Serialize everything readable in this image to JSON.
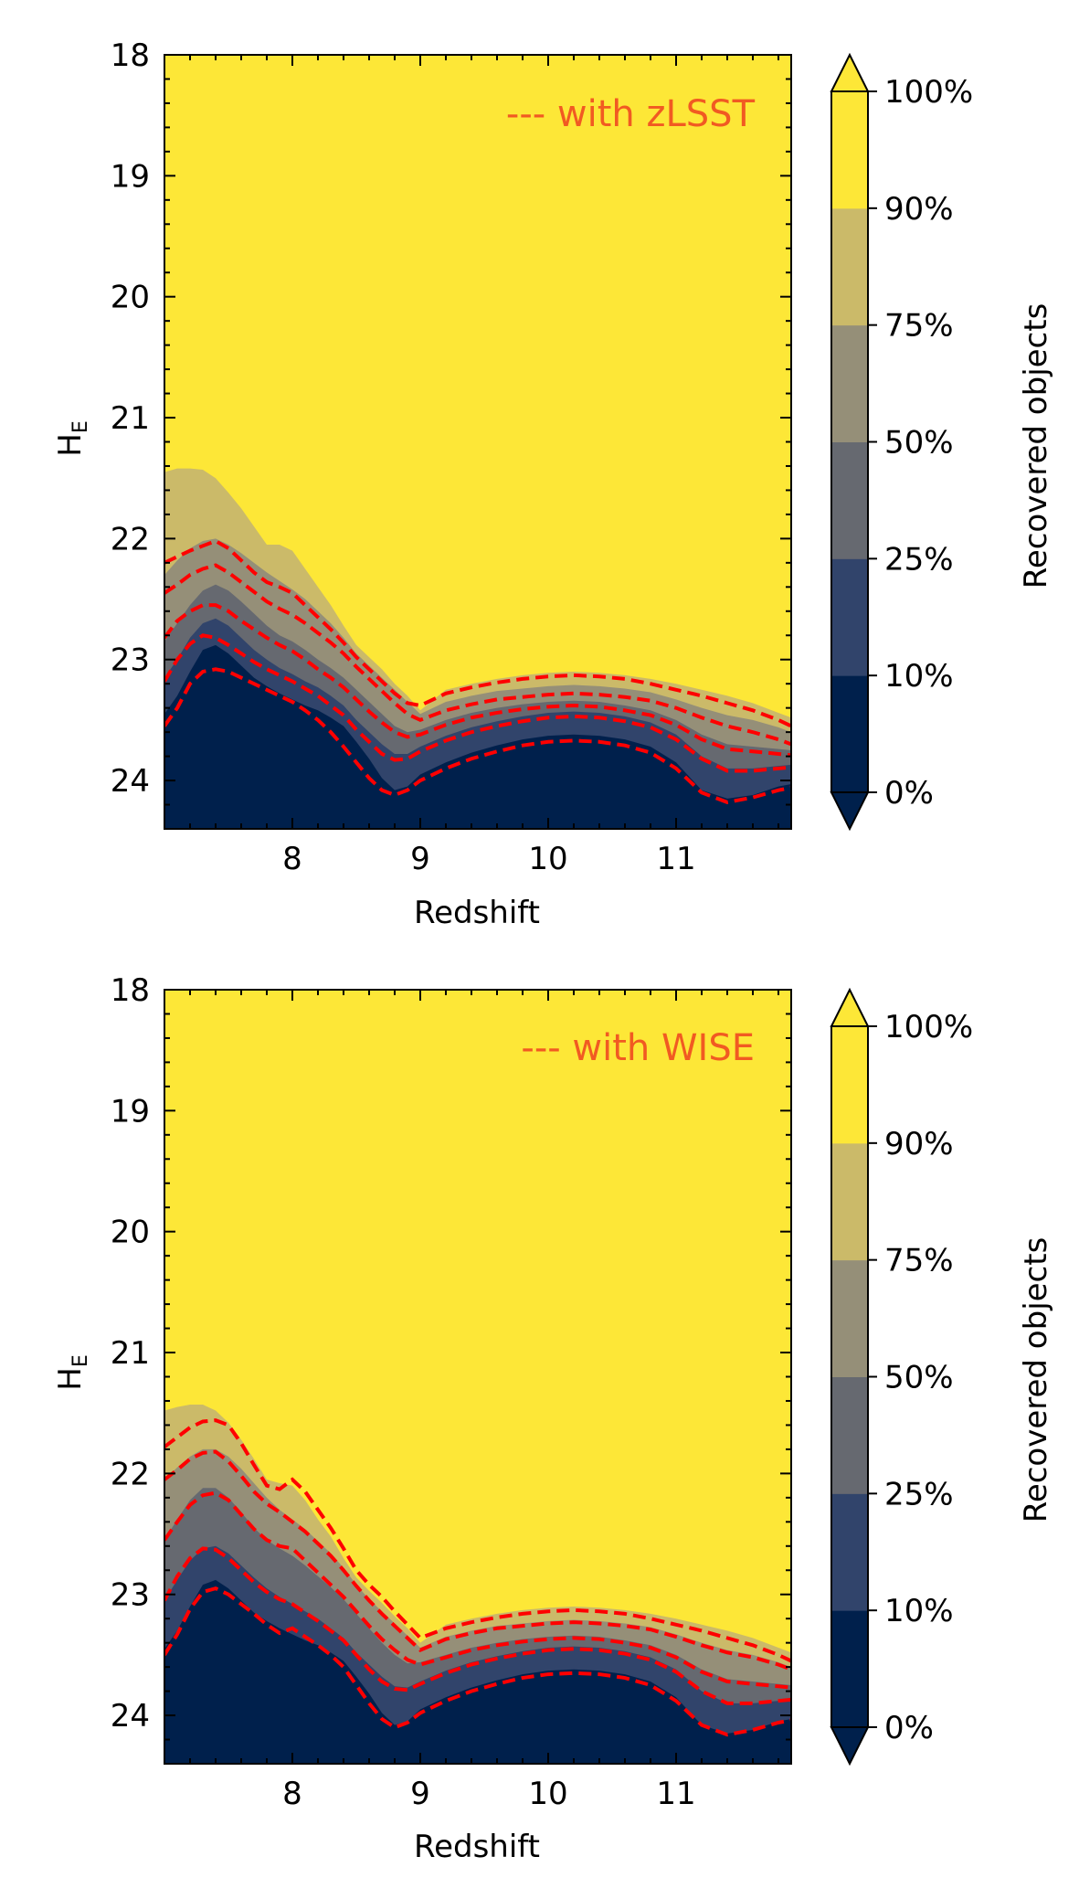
{
  "colors": {
    "levels": [
      "#00204c",
      "#31446b",
      "#666970",
      "#958f78",
      "#cbba69",
      "#fde737"
    ],
    "contour": "#ff0000",
    "legend_text": "#f15a22"
  },
  "chart_data": [
    {
      "type": "contour",
      "title": "",
      "legend": "--- with zLSST",
      "xlabel": "Redshift",
      "ylabel_main": "H",
      "ylabel_sub": "E",
      "xlim": [
        7.0,
        11.9
      ],
      "ylim": [
        24.4,
        18.0
      ],
      "x_ticks": [
        8,
        9,
        10,
        11
      ],
      "x_tick_labels": [
        "8",
        "9",
        "10",
        "11"
      ],
      "y_ticks": [
        18,
        19,
        20,
        21,
        22,
        23,
        24
      ],
      "y_tick_labels": [
        "18",
        "19",
        "20",
        "21",
        "22",
        "23",
        "24"
      ],
      "colorbar": {
        "label": "Recovered objects",
        "ticks": [
          "0%",
          "10%",
          "25%",
          "50%",
          "75%",
          "90%",
          "100%"
        ]
      },
      "x": [
        7.0,
        7.1,
        7.2,
        7.3,
        7.4,
        7.5,
        7.6,
        7.7,
        7.8,
        7.9,
        8.0,
        8.1,
        8.2,
        8.3,
        8.4,
        8.5,
        8.6,
        8.7,
        8.8,
        8.9,
        9.0,
        9.2,
        9.4,
        9.6,
        9.8,
        10.0,
        10.2,
        10.4,
        10.6,
        10.8,
        11.0,
        11.2,
        11.4,
        11.6,
        11.8,
        11.9
      ],
      "bands": [
        {
          "name": "10%",
          "values": [
            23.45,
            23.3,
            23.1,
            22.92,
            22.88,
            22.95,
            23.05,
            23.15,
            23.22,
            23.28,
            23.33,
            23.38,
            23.42,
            23.48,
            23.55,
            23.68,
            23.82,
            23.98,
            24.08,
            24.05,
            23.95,
            23.85,
            23.77,
            23.71,
            23.66,
            23.63,
            23.62,
            23.63,
            23.66,
            23.72,
            23.85,
            24.08,
            24.15,
            24.12,
            24.05,
            24.03
          ]
        },
        {
          "name": "25%",
          "values": [
            23.15,
            23.0,
            22.82,
            22.7,
            22.66,
            22.72,
            22.82,
            22.92,
            23.0,
            23.07,
            23.12,
            23.18,
            23.23,
            23.3,
            23.38,
            23.5,
            23.6,
            23.7,
            23.78,
            23.78,
            23.72,
            23.63,
            23.56,
            23.51,
            23.47,
            23.44,
            23.43,
            23.44,
            23.47,
            23.52,
            23.62,
            23.8,
            23.9,
            23.9,
            23.88,
            23.87
          ]
        },
        {
          "name": "50%",
          "values": [
            22.85,
            22.7,
            22.55,
            22.43,
            22.38,
            22.43,
            22.52,
            22.62,
            22.72,
            22.8,
            22.85,
            22.92,
            23.0,
            23.07,
            23.15,
            23.25,
            23.35,
            23.45,
            23.55,
            23.6,
            23.58,
            23.5,
            23.44,
            23.4,
            23.37,
            23.35,
            23.34,
            23.35,
            23.38,
            23.42,
            23.5,
            23.62,
            23.7,
            23.72,
            23.74,
            23.75
          ]
        },
        {
          "name": "75%",
          "values": [
            22.3,
            22.18,
            22.08,
            22.02,
            22.0,
            22.05,
            22.12,
            22.2,
            22.28,
            22.35,
            22.42,
            22.5,
            22.6,
            22.7,
            22.82,
            22.95,
            23.05,
            23.15,
            23.25,
            23.35,
            23.45,
            23.35,
            23.3,
            23.26,
            23.24,
            23.22,
            23.21,
            23.22,
            23.24,
            23.27,
            23.33,
            23.4,
            23.46,
            23.5,
            23.56,
            23.6
          ]
        },
        {
          "name": "90%",
          "values": [
            21.45,
            21.42,
            21.42,
            21.43,
            21.5,
            21.62,
            21.75,
            21.9,
            22.05,
            22.05,
            22.1,
            22.25,
            22.4,
            22.55,
            22.72,
            22.88,
            22.98,
            23.08,
            23.2,
            23.3,
            23.42,
            23.25,
            23.2,
            23.16,
            23.13,
            23.11,
            23.1,
            23.11,
            23.13,
            23.16,
            23.2,
            23.25,
            23.3,
            23.36,
            23.44,
            23.48
          ]
        }
      ],
      "contour_lines": [
        {
          "values": [
            23.55,
            23.4,
            23.2,
            23.1,
            23.08,
            23.1,
            23.15,
            23.2,
            23.25,
            23.3,
            23.35,
            23.42,
            23.5,
            23.6,
            23.72,
            23.85,
            23.98,
            24.08,
            24.12,
            24.08,
            24.0,
            23.9,
            23.82,
            23.76,
            23.71,
            23.68,
            23.67,
            23.68,
            23.71,
            23.77,
            23.9,
            24.1,
            24.18,
            24.14,
            24.08,
            24.06
          ]
        },
        {
          "values": [
            23.18,
            23.0,
            22.87,
            22.8,
            22.82,
            22.88,
            22.95,
            23.02,
            23.08,
            23.13,
            23.18,
            23.24,
            23.3,
            23.38,
            23.46,
            23.58,
            23.68,
            23.78,
            23.83,
            23.82,
            23.76,
            23.67,
            23.6,
            23.55,
            23.51,
            23.48,
            23.47,
            23.48,
            23.51,
            23.56,
            23.66,
            23.82,
            23.92,
            23.92,
            23.9,
            23.89
          ]
        },
        {
          "values": [
            22.82,
            22.68,
            22.6,
            22.55,
            22.55,
            22.6,
            22.68,
            22.75,
            22.82,
            22.88,
            22.93,
            23.0,
            23.08,
            23.15,
            23.23,
            23.33,
            23.43,
            23.52,
            23.6,
            23.64,
            23.62,
            23.54,
            23.48,
            23.44,
            23.41,
            23.39,
            23.38,
            23.39,
            23.42,
            23.46,
            23.54,
            23.66,
            23.74,
            23.76,
            23.78,
            23.79
          ]
        },
        {
          "values": [
            22.45,
            22.38,
            22.3,
            22.25,
            22.22,
            22.28,
            22.36,
            22.44,
            22.52,
            22.58,
            22.63,
            22.7,
            22.78,
            22.86,
            22.95,
            23.06,
            23.16,
            23.26,
            23.36,
            23.45,
            23.5,
            23.42,
            23.37,
            23.33,
            23.31,
            23.29,
            23.28,
            23.29,
            23.31,
            23.34,
            23.4,
            23.48,
            23.55,
            23.6,
            23.66,
            23.7
          ]
        },
        {
          "values": [
            22.2,
            22.15,
            22.1,
            22.06,
            22.02,
            22.08,
            22.18,
            22.28,
            22.36,
            22.4,
            22.45,
            22.55,
            22.65,
            22.75,
            22.86,
            22.98,
            23.08,
            23.18,
            23.28,
            23.36,
            23.38,
            23.28,
            23.23,
            23.19,
            23.16,
            23.14,
            23.13,
            23.14,
            23.16,
            23.2,
            23.25,
            23.3,
            23.36,
            23.42,
            23.5,
            23.55
          ]
        }
      ]
    },
    {
      "type": "contour",
      "title": "",
      "legend": "--- with WISE",
      "xlabel": "Redshift",
      "ylabel_main": "H",
      "ylabel_sub": "E",
      "xlim": [
        7.0,
        11.9
      ],
      "ylim": [
        24.4,
        18.0
      ],
      "x_ticks": [
        8,
        9,
        10,
        11
      ],
      "x_tick_labels": [
        "8",
        "9",
        "10",
        "11"
      ],
      "y_ticks": [
        18,
        19,
        20,
        21,
        22,
        23,
        24
      ],
      "y_tick_labels": [
        "18",
        "19",
        "20",
        "21",
        "22",
        "23",
        "24"
      ],
      "colorbar": {
        "label": "Recovered objects",
        "ticks": [
          "0%",
          "10%",
          "25%",
          "50%",
          "75%",
          "90%",
          "100%"
        ]
      },
      "x": [
        7.0,
        7.1,
        7.2,
        7.3,
        7.4,
        7.5,
        7.6,
        7.7,
        7.8,
        7.9,
        8.0,
        8.1,
        8.2,
        8.3,
        8.4,
        8.5,
        8.6,
        8.7,
        8.8,
        8.9,
        9.0,
        9.2,
        9.4,
        9.6,
        9.8,
        10.0,
        10.2,
        10.4,
        10.6,
        10.8,
        11.0,
        11.2,
        11.4,
        11.6,
        11.8,
        11.9
      ],
      "bands": [
        {
          "name": "10%",
          "values": [
            23.45,
            23.3,
            23.1,
            22.92,
            22.88,
            22.95,
            23.05,
            23.15,
            23.22,
            23.28,
            23.33,
            23.38,
            23.42,
            23.48,
            23.55,
            23.68,
            23.82,
            23.98,
            24.08,
            24.05,
            23.95,
            23.85,
            23.77,
            23.71,
            23.66,
            23.63,
            23.62,
            23.63,
            23.66,
            23.72,
            23.85,
            24.08,
            24.15,
            24.12,
            24.05,
            24.03
          ]
        },
        {
          "name": "25%",
          "values": [
            23.05,
            22.88,
            22.72,
            22.62,
            22.6,
            22.66,
            22.76,
            22.86,
            22.95,
            23.02,
            23.08,
            23.14,
            23.2,
            23.28,
            23.36,
            23.48,
            23.58,
            23.68,
            23.76,
            23.77,
            23.72,
            23.63,
            23.56,
            23.51,
            23.47,
            23.44,
            23.43,
            23.44,
            23.47,
            23.52,
            23.62,
            23.8,
            23.9,
            23.9,
            23.88,
            23.87
          ]
        },
        {
          "name": "50%",
          "values": [
            22.55,
            22.38,
            22.22,
            22.12,
            22.12,
            22.2,
            22.32,
            22.45,
            22.55,
            22.62,
            22.68,
            22.76,
            22.85,
            22.94,
            23.04,
            23.16,
            23.28,
            23.4,
            23.5,
            23.57,
            23.56,
            23.5,
            23.44,
            23.4,
            23.37,
            23.35,
            23.34,
            23.35,
            23.38,
            23.42,
            23.5,
            23.62,
            23.7,
            23.72,
            23.74,
            23.75
          ]
        },
        {
          "name": "75%",
          "values": [
            22.05,
            21.95,
            21.86,
            21.8,
            21.8,
            21.86,
            21.96,
            22.08,
            22.2,
            22.3,
            22.38,
            22.46,
            22.56,
            22.66,
            22.78,
            22.92,
            23.04,
            23.14,
            23.24,
            23.34,
            23.44,
            23.35,
            23.3,
            23.26,
            23.24,
            23.22,
            23.21,
            23.22,
            23.24,
            23.27,
            23.33,
            23.4,
            23.46,
            23.5,
            23.56,
            23.6
          ]
        },
        {
          "name": "90%",
          "values": [
            21.48,
            21.45,
            21.43,
            21.43,
            21.48,
            21.58,
            21.72,
            21.88,
            22.05,
            22.08,
            22.1,
            22.22,
            22.38,
            22.52,
            22.7,
            22.86,
            22.97,
            23.07,
            23.18,
            23.28,
            23.4,
            23.25,
            23.2,
            23.16,
            23.13,
            23.11,
            23.1,
            23.11,
            23.13,
            23.16,
            23.2,
            23.25,
            23.3,
            23.36,
            23.44,
            23.48
          ]
        }
      ],
      "contour_lines": [
        {
          "values": [
            23.5,
            23.33,
            23.12,
            22.98,
            22.95,
            23.0,
            23.08,
            23.16,
            23.25,
            23.32,
            23.28,
            23.35,
            23.42,
            23.5,
            23.6,
            23.75,
            23.9,
            24.03,
            24.1,
            24.06,
            23.98,
            23.88,
            23.8,
            23.74,
            23.69,
            23.66,
            23.65,
            23.66,
            23.69,
            23.75,
            23.88,
            24.08,
            24.16,
            24.12,
            24.06,
            24.04
          ]
        },
        {
          "values": [
            23.05,
            22.85,
            22.7,
            22.62,
            22.63,
            22.7,
            22.8,
            22.9,
            22.98,
            23.04,
            23.08,
            23.15,
            23.22,
            23.3,
            23.38,
            23.5,
            23.62,
            23.72,
            23.78,
            23.79,
            23.74,
            23.65,
            23.58,
            23.53,
            23.49,
            23.46,
            23.45,
            23.46,
            23.49,
            23.54,
            23.64,
            23.8,
            23.9,
            23.9,
            23.88,
            23.87
          ]
        },
        {
          "values": [
            22.55,
            22.4,
            22.26,
            22.18,
            22.16,
            22.22,
            22.34,
            22.46,
            22.55,
            22.6,
            22.62,
            22.72,
            22.82,
            22.92,
            23.02,
            23.14,
            23.26,
            23.37,
            23.46,
            23.54,
            23.58,
            23.52,
            23.46,
            23.42,
            23.39,
            23.37,
            23.36,
            23.37,
            23.4,
            23.44,
            23.52,
            23.64,
            23.72,
            23.74,
            23.76,
            23.77
          ]
        },
        {
          "values": [
            22.05,
            21.97,
            21.88,
            21.83,
            21.82,
            21.9,
            22.02,
            22.15,
            22.25,
            22.32,
            22.4,
            22.48,
            22.58,
            22.68,
            22.8,
            22.93,
            23.05,
            23.16,
            23.26,
            23.36,
            23.46,
            23.37,
            23.32,
            23.28,
            23.26,
            23.24,
            23.23,
            23.24,
            23.26,
            23.29,
            23.35,
            23.42,
            23.48,
            23.52,
            23.58,
            23.62
          ]
        },
        {
          "values": [
            21.78,
            21.7,
            21.62,
            21.57,
            21.56,
            21.6,
            21.75,
            21.93,
            22.1,
            22.13,
            22.05,
            22.15,
            22.3,
            22.45,
            22.62,
            22.8,
            22.92,
            23.02,
            23.14,
            23.25,
            23.36,
            23.28,
            23.23,
            23.19,
            23.16,
            23.14,
            23.13,
            23.14,
            23.16,
            23.2,
            23.25,
            23.3,
            23.36,
            23.42,
            23.5,
            23.55
          ]
        }
      ]
    }
  ]
}
